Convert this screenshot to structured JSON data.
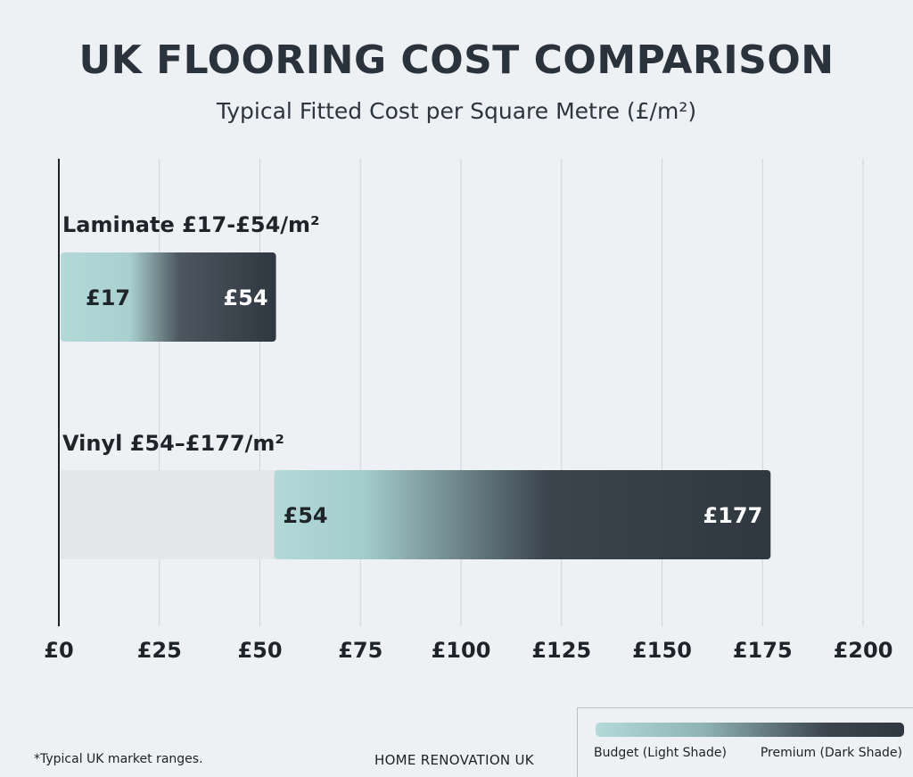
{
  "title": "UK FLOORING COST COMPARISON",
  "subtitle": "Typical Fitted Cost per Square Metre (£/m²)",
  "footnote": "*Typical UK market ranges.",
  "brand": "HOME RENOVATION UK",
  "legend": {
    "low_label": "Budget (Light Shade)",
    "high_label": "Premium (Dark Shade)"
  },
  "colors": {
    "budget": "#b3d9d9",
    "premium": "#2f3740",
    "track": "#e4e6e8",
    "grid": "#cfd3d8",
    "axis": "#1f2429",
    "text": "#1f2429"
  },
  "chart_data": {
    "type": "bar",
    "orientation": "horizontal",
    "title": "UK FLOORING COST COMPARISON",
    "subtitle": "Typical Fitted Cost per Square Metre (£/m²)",
    "xlim": [
      0,
      200
    ],
    "x_ticks": [
      {
        "value": 0,
        "label": "£0"
      },
      {
        "value": 25,
        "label": "£25"
      },
      {
        "value": 50,
        "label": "£50"
      },
      {
        "value": 75,
        "label": "£75"
      },
      {
        "value": 100,
        "label": "£100"
      },
      {
        "value": 125,
        "label": "£125"
      },
      {
        "value": 150,
        "label": "£150"
      },
      {
        "value": 175,
        "label": "£175"
      },
      {
        "value": 200,
        "label": "£200"
      }
    ],
    "grid": true,
    "legend_position": "bottom-right",
    "series": [
      {
        "name": "Laminate",
        "label": "Laminate £17-£54/m²",
        "low": 17,
        "high": 54,
        "low_label": "£17",
        "high_label": "£54"
      },
      {
        "name": "Vinyl",
        "label": "Vinyl £54–£177/m²",
        "low": 54,
        "high": 177,
        "low_label": "£54",
        "high_label": "£177"
      }
    ]
  }
}
